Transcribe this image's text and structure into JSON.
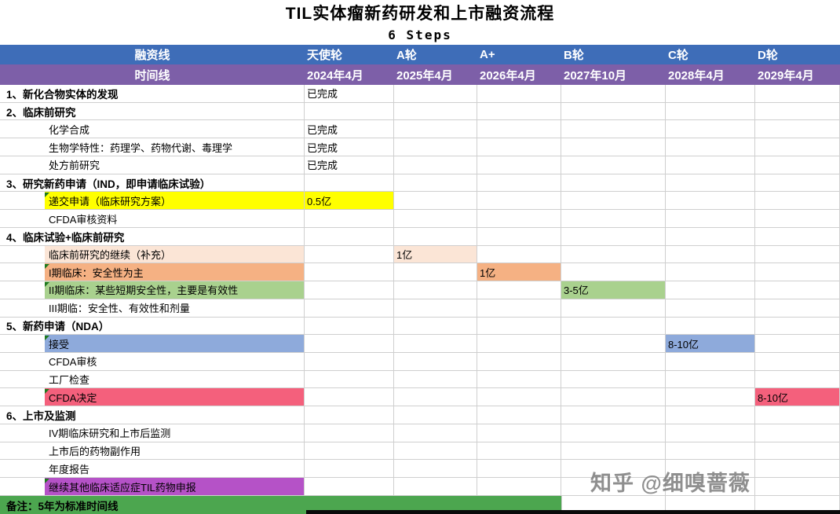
{
  "title": "TIL实体瘤新药研发和上市融资流程",
  "subtitle": "6 Steps",
  "watermark": "知乎 @细嗅蔷薇",
  "footer_note": "备注：5年为标准时间线",
  "columns": {
    "financing_label": "融资线",
    "timeline_label": "时间线",
    "rounds": [
      "天使轮",
      "A轮",
      "A+",
      "B轮",
      "C轮",
      "D轮"
    ],
    "dates": [
      "2024年4月",
      "2025年4月",
      "2026年4月",
      "2027年10月",
      "2028年4月",
      "2029年4月"
    ]
  },
  "colors": {
    "header_blue": "#3e6db8",
    "header_purple": "#7d5fa8",
    "yellow": "#ffff00",
    "peach": "#fbe5d6",
    "orange": "#f5b183",
    "green": "#a9d18e",
    "blue": "#8eaadb",
    "pink": "#f4607c",
    "purple": "#b552c7",
    "footer_green": "#4ca64f",
    "grid": "#cfcfcf"
  },
  "rows": [
    {
      "label": "1、新化合物实体的发现",
      "indent": 0,
      "cells": [
        {
          "col": 0,
          "text": "已完成"
        }
      ]
    },
    {
      "label": "2、临床前研究",
      "indent": 0,
      "cells": []
    },
    {
      "label": "化学合成",
      "indent": 1,
      "cells": [
        {
          "col": 0,
          "text": "已完成"
        }
      ]
    },
    {
      "label": "生物学特性：药理学、药物代谢、毒理学",
      "indent": 1,
      "cells": [
        {
          "col": 0,
          "text": "已完成"
        }
      ]
    },
    {
      "label": "处方前研究",
      "indent": 1,
      "cells": [
        {
          "col": 0,
          "text": "已完成"
        }
      ]
    },
    {
      "label": "3、研究新药申请（IND，即申请临床试验）",
      "indent": 0,
      "cells": []
    },
    {
      "label": "递交申请（临床研究方案）",
      "indent": 1,
      "label_bg": "yellow",
      "marker": true,
      "cells": [
        {
          "col": 0,
          "text": "0.5亿",
          "bg": "yellow"
        }
      ]
    },
    {
      "label": "CFDA审核资料",
      "indent": 1,
      "cells": []
    },
    {
      "label": "4、临床试验+临床前研究",
      "indent": 0,
      "cells": []
    },
    {
      "label": "临床前研究的继续（补充）",
      "indent": 1,
      "label_bg": "peach",
      "cells": [
        {
          "col": 1,
          "text": "1亿",
          "bg": "peach"
        }
      ]
    },
    {
      "label": "I期临床：安全性为主",
      "indent": 1,
      "label_bg": "orange",
      "marker": true,
      "cells": [
        {
          "col": 2,
          "text": "1亿",
          "bg": "orange"
        }
      ]
    },
    {
      "label": "II期临床：某些短期安全性，主要是有效性",
      "indent": 1,
      "label_bg": "green",
      "marker": true,
      "cells": [
        {
          "col": 3,
          "text": "3-5亿",
          "bg": "green"
        }
      ]
    },
    {
      "label": "III期临：安全性、有效性和剂量",
      "indent": 1,
      "cells": []
    },
    {
      "label": "5、新药申请（NDA）",
      "indent": 0,
      "cells": []
    },
    {
      "label": "接受",
      "indent": 1,
      "label_bg": "blue",
      "marker": true,
      "cells": [
        {
          "col": 4,
          "text": "8-10亿",
          "bg": "blue"
        }
      ]
    },
    {
      "label": "CFDA审核",
      "indent": 1,
      "cells": []
    },
    {
      "label": "工厂检查",
      "indent": 1,
      "cells": []
    },
    {
      "label": "CFDA决定",
      "indent": 1,
      "label_bg": "pink",
      "marker": true,
      "cells": [
        {
          "col": 5,
          "text": "8-10亿",
          "bg": "pink"
        }
      ]
    },
    {
      "label": "6、上市及监测",
      "indent": 0,
      "cells": []
    },
    {
      "label": "IV期临床研究和上市后监测",
      "indent": 1,
      "cells": []
    },
    {
      "label": "上市后的药物副作用",
      "indent": 1,
      "cells": []
    },
    {
      "label": "年度报告",
      "indent": 1,
      "cells": []
    },
    {
      "label": "继续其他临床适应症TIL药物申报",
      "indent": 1,
      "label_bg": "purple",
      "marker": true,
      "cells": []
    }
  ]
}
